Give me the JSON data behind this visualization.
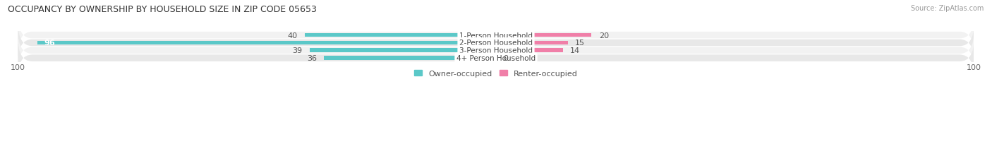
{
  "title": "OCCUPANCY BY OWNERSHIP BY HOUSEHOLD SIZE IN ZIP CODE 05653",
  "source": "Source: ZipAtlas.com",
  "categories": [
    "1-Person Household",
    "2-Person Household",
    "3-Person Household",
    "4+ Person Household"
  ],
  "owner_values": [
    40,
    96,
    39,
    36
  ],
  "renter_values": [
    20,
    15,
    14,
    0
  ],
  "owner_color": "#5BC8C8",
  "renter_color": "#F07FA8",
  "renter_color_light": "#F5B8CC",
  "axis_max": 100,
  "row_bg_odd": "#F2F2F2",
  "row_bg_even": "#E8E8E8",
  "legend_owner": "Owner-occupied",
  "legend_renter": "Renter-occupied"
}
